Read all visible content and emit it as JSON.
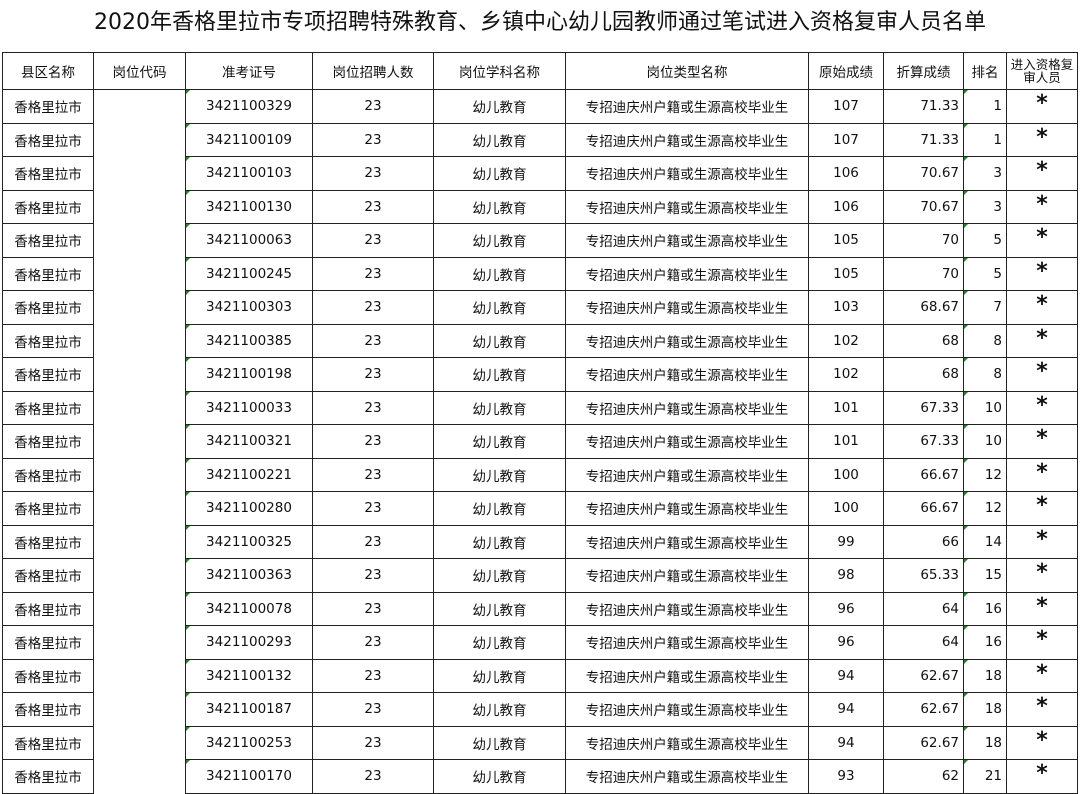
{
  "title": "2020年香格里拉市专项招聘特殊教育、乡镇中心幼儿园教师通过笔试进入资格复审人员名单",
  "columns": [
    "县区名称",
    "岗位代码",
    "准考证号",
    "岗位招聘人数",
    "岗位学科名称",
    "岗位类型名称",
    "原始成绩",
    "折算成绩",
    "排名",
    "进入资格复审人员"
  ],
  "rows": [
    [
      "香格里拉市",
      "",
      "3421100329",
      "23",
      "幼儿教育",
      "专招迪庆州户籍或生源高校毕业生",
      "107",
      "71.33",
      "1",
      "*"
    ],
    [
      "香格里拉市",
      "",
      "3421100109",
      "23",
      "幼儿教育",
      "专招迪庆州户籍或生源高校毕业生",
      "107",
      "71.33",
      "1",
      "*"
    ],
    [
      "香格里拉市",
      "",
      "3421100103",
      "23",
      "幼儿教育",
      "专招迪庆州户籍或生源高校毕业生",
      "106",
      "70.67",
      "3",
      "*"
    ],
    [
      "香格里拉市",
      "",
      "3421100130",
      "23",
      "幼儿教育",
      "专招迪庆州户籍或生源高校毕业生",
      "106",
      "70.67",
      "3",
      "*"
    ],
    [
      "香格里拉市",
      "",
      "3421100063",
      "23",
      "幼儿教育",
      "专招迪庆州户籍或生源高校毕业生",
      "105",
      "70",
      "5",
      "*"
    ],
    [
      "香格里拉市",
      "",
      "3421100245",
      "23",
      "幼儿教育",
      "专招迪庆州户籍或生源高校毕业生",
      "105",
      "70",
      "5",
      "*"
    ],
    [
      "香格里拉市",
      "",
      "3421100303",
      "23",
      "幼儿教育",
      "专招迪庆州户籍或生源高校毕业生",
      "103",
      "68.67",
      "7",
      "*"
    ],
    [
      "香格里拉市",
      "",
      "3421100385",
      "23",
      "幼儿教育",
      "专招迪庆州户籍或生源高校毕业生",
      "102",
      "68",
      "8",
      "*"
    ],
    [
      "香格里拉市",
      "",
      "3421100198",
      "23",
      "幼儿教育",
      "专招迪庆州户籍或生源高校毕业生",
      "102",
      "68",
      "8",
      "*"
    ],
    [
      "香格里拉市",
      "",
      "3421100033",
      "23",
      "幼儿教育",
      "专招迪庆州户籍或生源高校毕业生",
      "101",
      "67.33",
      "10",
      "*"
    ],
    [
      "香格里拉市",
      "",
      "3421100321",
      "23",
      "幼儿教育",
      "专招迪庆州户籍或生源高校毕业生",
      "101",
      "67.33",
      "10",
      "*"
    ],
    [
      "香格里拉市",
      "",
      "3421100221",
      "23",
      "幼儿教育",
      "专招迪庆州户籍或生源高校毕业生",
      "100",
      "66.67",
      "12",
      "*"
    ],
    [
      "香格里拉市",
      "",
      "3421100280",
      "23",
      "幼儿教育",
      "专招迪庆州户籍或生源高校毕业生",
      "100",
      "66.67",
      "12",
      "*"
    ],
    [
      "香格里拉市",
      "",
      "3421100325",
      "23",
      "幼儿教育",
      "专招迪庆州户籍或生源高校毕业生",
      "99",
      "66",
      "14",
      "*"
    ],
    [
      "香格里拉市",
      "",
      "3421100363",
      "23",
      "幼儿教育",
      "专招迪庆州户籍或生源高校毕业生",
      "98",
      "65.33",
      "15",
      "*"
    ],
    [
      "香格里拉市",
      "",
      "3421100078",
      "23",
      "幼儿教育",
      "专招迪庆州户籍或生源高校毕业生",
      "96",
      "64",
      "16",
      "*"
    ],
    [
      "香格里拉市",
      "",
      "3421100293",
      "23",
      "幼儿教育",
      "专招迪庆州户籍或生源高校毕业生",
      "96",
      "64",
      "16",
      "*"
    ],
    [
      "香格里拉市",
      "",
      "3421100132",
      "23",
      "幼儿教育",
      "专招迪庆州户籍或生源高校毕业生",
      "94",
      "62.67",
      "18",
      "*"
    ],
    [
      "香格里拉市",
      "",
      "3421100187",
      "23",
      "幼儿教育",
      "专招迪庆州户籍或生源高校毕业生",
      "94",
      "62.67",
      "18",
      "*"
    ],
    [
      "香格里拉市",
      "",
      "3421100253",
      "23",
      "幼儿教育",
      "专招迪庆州户籍或生源高校毕业生",
      "94",
      "62.67",
      "18",
      "*"
    ],
    [
      "香格里拉市",
      "",
      "3421100170",
      "23",
      "幼儿教育",
      "专招迪庆州户籍或生源高校毕业生",
      "93",
      "62",
      "21",
      "*"
    ]
  ]
}
